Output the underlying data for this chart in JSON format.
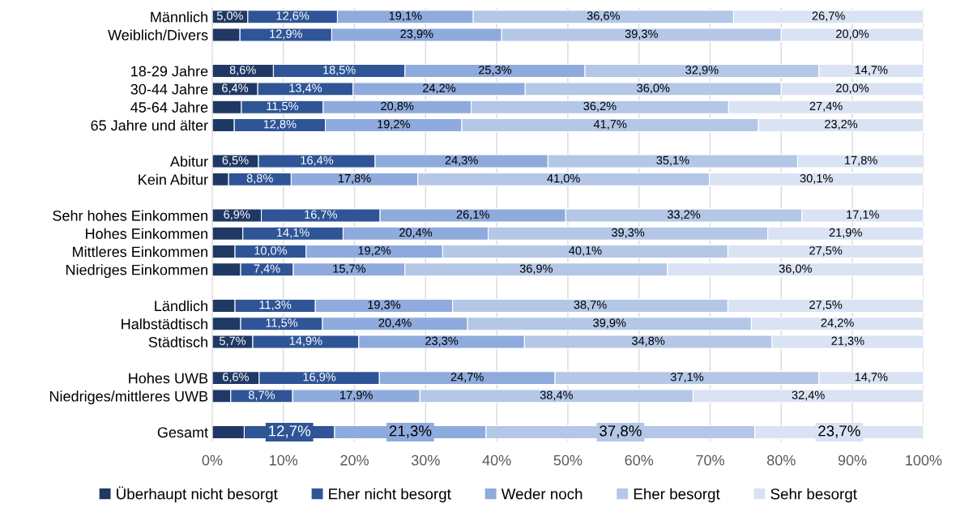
{
  "chart_data": {
    "type": "bar",
    "orientation": "horizontal",
    "stacked": true,
    "categories": [
      "Männlich",
      "Weiblich/Divers",
      null,
      "18-29 Jahre",
      "30-44 Jahre",
      "45-64 Jahre",
      "65 Jahre und älter",
      null,
      "Abitur",
      "Kein Abitur",
      null,
      "Sehr hohes Einkommen",
      "Hohes Einkommen",
      "Mittleres Einkommen",
      "Niedriges Einkommen",
      null,
      "Ländlich",
      "Halbstädtisch",
      "Städtisch",
      null,
      "Hohes UWB",
      "Niedriges/mittleres UWB",
      null,
      "Gesamt"
    ],
    "series": [
      {
        "name": "Überhaupt nicht besorgt",
        "color": "#1f3864",
        "values": [
          5.0,
          3.9,
          null,
          8.6,
          6.4,
          4.1,
          3.1,
          null,
          6.5,
          2.3,
          null,
          6.9,
          4.3,
          3.2,
          4.0,
          null,
          3.2,
          4.0,
          5.7,
          null,
          6.6,
          2.6,
          null,
          4.5
        ],
        "value_labels": [
          "5,0%",
          null,
          null,
          "8,6%",
          "6,4%",
          null,
          null,
          null,
          "6,5%",
          null,
          null,
          "6,9%",
          null,
          null,
          null,
          null,
          null,
          null,
          "5,7%",
          null,
          "6,6%",
          null,
          null,
          null
        ]
      },
      {
        "name": "Eher nicht besorgt",
        "color": "#2f5597",
        "values": [
          12.6,
          12.9,
          null,
          18.5,
          13.4,
          11.5,
          12.8,
          null,
          16.4,
          8.8,
          null,
          16.7,
          14.1,
          10.0,
          7.4,
          null,
          11.3,
          11.5,
          14.9,
          null,
          16.9,
          8.7,
          null,
          12.7
        ],
        "value_labels": [
          "12,6%",
          "12,9%",
          null,
          "18,5%",
          "13,4%",
          "11,5%",
          "12,8%",
          null,
          "16,4%",
          "8,8%",
          null,
          "16,7%",
          "14,1%",
          "10,0%",
          "7,4%",
          null,
          "11,3%",
          "11,5%",
          "14,9%",
          null,
          "16,9%",
          "8,7%",
          null,
          "12,7%"
        ]
      },
      {
        "name": "Weder noch",
        "color": "#8faadc",
        "values": [
          19.1,
          23.9,
          null,
          25.3,
          24.2,
          20.8,
          19.2,
          null,
          24.3,
          17.8,
          null,
          26.1,
          20.4,
          19.2,
          15.7,
          null,
          19.3,
          20.4,
          23.3,
          null,
          24.7,
          17.9,
          null,
          21.3
        ],
        "value_labels": [
          "19,1%",
          "23,9%",
          null,
          "25,3%",
          "24,2%",
          "20,8%",
          "19,2%",
          null,
          "24,3%",
          "17,8%",
          null,
          "26,1%",
          "20,4%",
          "19,2%",
          "15,7%",
          null,
          "19,3%",
          "20,4%",
          "23,3%",
          null,
          "24,7%",
          "17,9%",
          null,
          "21,3%"
        ]
      },
      {
        "name": "Eher besorgt",
        "color": "#b4c7e7",
        "values": [
          36.6,
          39.3,
          null,
          32.9,
          36.0,
          36.2,
          41.7,
          null,
          35.1,
          41.0,
          null,
          33.2,
          39.3,
          40.1,
          36.9,
          null,
          38.7,
          39.9,
          34.8,
          null,
          37.1,
          38.4,
          null,
          37.8
        ],
        "value_labels": [
          "36,6%",
          "39,3%",
          null,
          "32,9%",
          "36,0%",
          "36,2%",
          "41,7%",
          null,
          "35,1%",
          "41,0%",
          null,
          "33,2%",
          "39,3%",
          "40,1%",
          "36,9%",
          null,
          "38,7%",
          "39,9%",
          "34,8%",
          null,
          "37,1%",
          "38,4%",
          null,
          "37,8%"
        ]
      },
      {
        "name": "Sehr besorgt",
        "color": "#dae3f3",
        "values": [
          26.7,
          20.0,
          null,
          14.7,
          20.0,
          27.4,
          23.2,
          null,
          17.8,
          30.1,
          null,
          17.1,
          21.9,
          27.5,
          36.0,
          null,
          27.5,
          24.2,
          21.3,
          null,
          14.7,
          32.4,
          null,
          23.7
        ],
        "value_labels": [
          "26,7%",
          "20,0%",
          null,
          "14,7%",
          "20,0%",
          "27,4%",
          "23,2%",
          null,
          "17,8%",
          "30,1%",
          null,
          "17,1%",
          "21,9%",
          "27,5%",
          "36,0%",
          null,
          "27,5%",
          "24,2%",
          "21,3%",
          null,
          "14,7%",
          "32,4%",
          null,
          "23,7%"
        ]
      }
    ],
    "xlim": [
      0,
      100
    ],
    "xticks": [
      {
        "value": 0,
        "label": "0%"
      },
      {
        "value": 10,
        "label": "10%"
      },
      {
        "value": 20,
        "label": "20%"
      },
      {
        "value": 30,
        "label": "30%"
      },
      {
        "value": 40,
        "label": "40%"
      },
      {
        "value": 50,
        "label": "50%"
      },
      {
        "value": 60,
        "label": "60%"
      },
      {
        "value": 70,
        "label": "70%"
      },
      {
        "value": 80,
        "label": "80%"
      },
      {
        "value": 90,
        "label": "90%"
      },
      {
        "value": 100,
        "label": "100%"
      }
    ],
    "grid": "x",
    "legend": "bottom"
  }
}
